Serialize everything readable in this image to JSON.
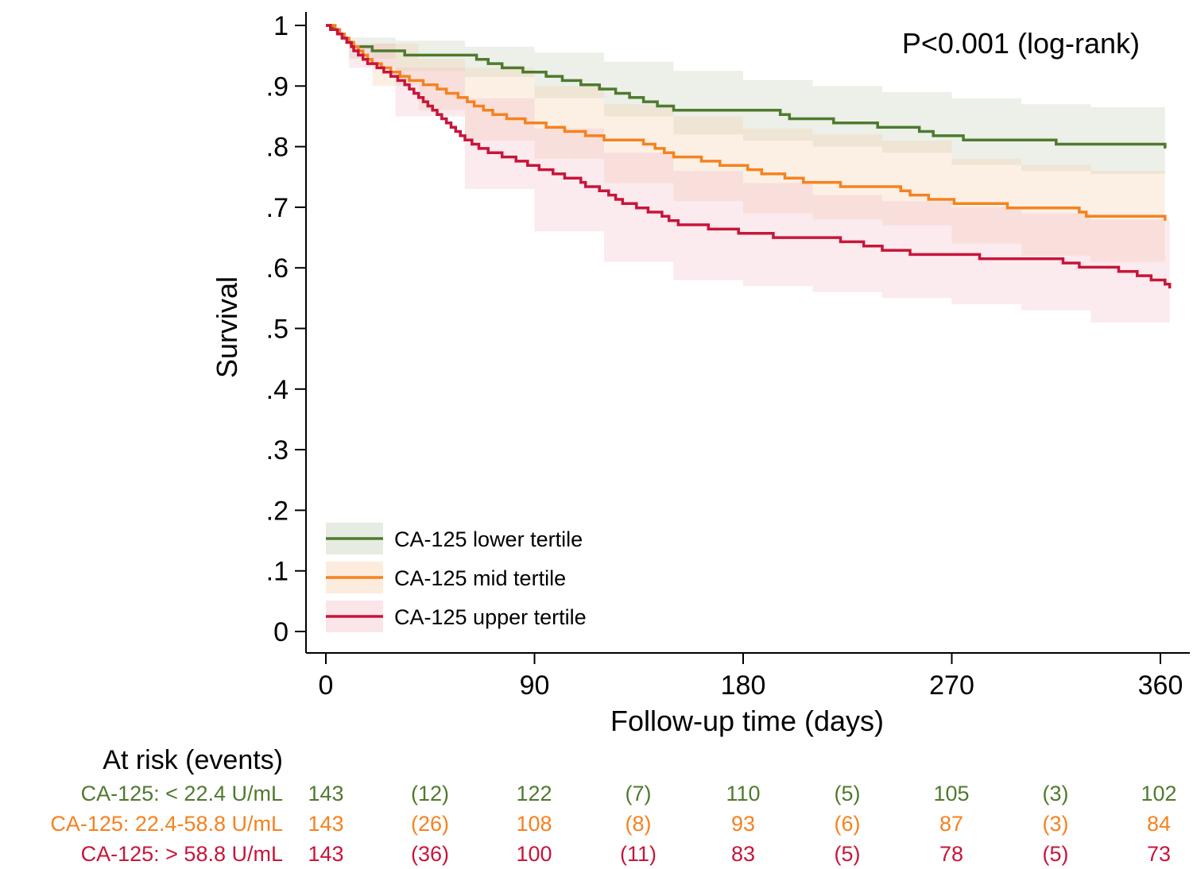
{
  "chart_data": {
    "type": "line",
    "subtype": "kaplan-meier",
    "xlabel": "Follow-up time (days)",
    "ylabel": "Survival",
    "xlim": [
      0,
      364
    ],
    "ylim": [
      0,
      1
    ],
    "x_ticks": [
      0,
      90,
      180,
      270,
      360
    ],
    "x_tick_labels": [
      "0",
      "90",
      "180",
      "270",
      "360"
    ],
    "y_ticks": [
      0,
      0.1,
      0.2,
      0.3,
      0.4,
      0.5,
      0.6,
      0.7,
      0.8,
      0.9,
      1
    ],
    "y_tick_labels": [
      "0",
      ".1",
      ".2",
      ".3",
      ".4",
      ".5",
      ".6",
      ".7",
      ".8",
      ".9",
      "1"
    ],
    "annotation": "P<0.001 (log-rank)",
    "legend_position": "bottom-left",
    "series": [
      {
        "name": "CA-125 lower tertile",
        "color": "#4f7a2e",
        "band_color": "#b9c9ab",
        "points": [
          [
            0,
            1.0
          ],
          [
            3,
            0.993
          ],
          [
            5,
            0.986
          ],
          [
            7,
            0.979
          ],
          [
            9,
            0.972
          ],
          [
            11,
            0.965
          ],
          [
            20,
            0.958
          ],
          [
            34,
            0.951
          ],
          [
            65,
            0.944
          ],
          [
            70,
            0.937
          ],
          [
            76,
            0.93
          ],
          [
            85,
            0.923
          ],
          [
            95,
            0.916
          ],
          [
            102,
            0.909
          ],
          [
            110,
            0.902
          ],
          [
            118,
            0.895
          ],
          [
            125,
            0.888
          ],
          [
            131,
            0.881
          ],
          [
            137,
            0.874
          ],
          [
            143,
            0.867
          ],
          [
            150,
            0.86
          ],
          [
            196,
            0.853
          ],
          [
            200,
            0.846
          ],
          [
            219,
            0.839
          ],
          [
            238,
            0.832
          ],
          [
            256,
            0.825
          ],
          [
            262,
            0.818
          ],
          [
            275,
            0.811
          ],
          [
            315,
            0.804
          ],
          [
            362,
            0.797
          ]
        ],
        "upper": [
          [
            0,
            1.0
          ],
          [
            10,
            0.98
          ],
          [
            30,
            0.975
          ],
          [
            60,
            0.965
          ],
          [
            90,
            0.955
          ],
          [
            120,
            0.94
          ],
          [
            150,
            0.925
          ],
          [
            180,
            0.91
          ],
          [
            210,
            0.9
          ],
          [
            240,
            0.89
          ],
          [
            270,
            0.88
          ],
          [
            300,
            0.87
          ],
          [
            330,
            0.865
          ],
          [
            362,
            0.857
          ]
        ],
        "lower": [
          [
            0,
            1.0
          ],
          [
            10,
            0.945
          ],
          [
            30,
            0.925
          ],
          [
            60,
            0.915
          ],
          [
            90,
            0.88
          ],
          [
            120,
            0.85
          ],
          [
            150,
            0.82
          ],
          [
            180,
            0.81
          ],
          [
            210,
            0.8
          ],
          [
            240,
            0.79
          ],
          [
            270,
            0.77
          ],
          [
            300,
            0.76
          ],
          [
            330,
            0.755
          ],
          [
            362,
            0.73
          ]
        ]
      },
      {
        "name": "CA-125 mid tertile",
        "color": "#f5821f",
        "band_color": "#f5c9a0",
        "points": [
          [
            0,
            1.0
          ],
          [
            4,
            0.993
          ],
          [
            6,
            0.986
          ],
          [
            8,
            0.979
          ],
          [
            10,
            0.972
          ],
          [
            12,
            0.965
          ],
          [
            14,
            0.958
          ],
          [
            16,
            0.951
          ],
          [
            18,
            0.944
          ],
          [
            20,
            0.937
          ],
          [
            24,
            0.93
          ],
          [
            28,
            0.923
          ],
          [
            32,
            0.916
          ],
          [
            36,
            0.909
          ],
          [
            42,
            0.902
          ],
          [
            48,
            0.895
          ],
          [
            52,
            0.888
          ],
          [
            57,
            0.881
          ],
          [
            61,
            0.874
          ],
          [
            64,
            0.867
          ],
          [
            68,
            0.86
          ],
          [
            72,
            0.853
          ],
          [
            78,
            0.846
          ],
          [
            86,
            0.839
          ],
          [
            95,
            0.832
          ],
          [
            103,
            0.825
          ],
          [
            112,
            0.818
          ],
          [
            120,
            0.811
          ],
          [
            137,
            0.804
          ],
          [
            142,
            0.797
          ],
          [
            146,
            0.79
          ],
          [
            150,
            0.783
          ],
          [
            162,
            0.776
          ],
          [
            170,
            0.769
          ],
          [
            182,
            0.762
          ],
          [
            188,
            0.755
          ],
          [
            198,
            0.748
          ],
          [
            206,
            0.741
          ],
          [
            222,
            0.734
          ],
          [
            248,
            0.727
          ],
          [
            252,
            0.72
          ],
          [
            260,
            0.713
          ],
          [
            271,
            0.706
          ],
          [
            294,
            0.699
          ],
          [
            325,
            0.692
          ],
          [
            328,
            0.685
          ],
          [
            362,
            0.678
          ]
        ],
        "upper": [
          [
            0,
            1.0
          ],
          [
            20,
            0.97
          ],
          [
            40,
            0.945
          ],
          [
            60,
            0.93
          ],
          [
            90,
            0.9
          ],
          [
            120,
            0.87
          ],
          [
            150,
            0.85
          ],
          [
            180,
            0.83
          ],
          [
            210,
            0.82
          ],
          [
            240,
            0.81
          ],
          [
            270,
            0.78
          ],
          [
            300,
            0.77
          ],
          [
            330,
            0.76
          ],
          [
            362,
            0.75
          ]
        ],
        "lower": [
          [
            0,
            1.0
          ],
          [
            20,
            0.9
          ],
          [
            40,
            0.86
          ],
          [
            60,
            0.81
          ],
          [
            90,
            0.78
          ],
          [
            120,
            0.74
          ],
          [
            150,
            0.71
          ],
          [
            180,
            0.69
          ],
          [
            210,
            0.68
          ],
          [
            240,
            0.67
          ],
          [
            270,
            0.64
          ],
          [
            300,
            0.62
          ],
          [
            330,
            0.61
          ],
          [
            362,
            0.6
          ]
        ]
      },
      {
        "name": "CA-125 upper tertile",
        "color": "#c8153a",
        "band_color": "#f2b4c1",
        "points": [
          [
            0,
            1.0
          ],
          [
            2,
            0.993
          ],
          [
            5,
            0.986
          ],
          [
            7,
            0.979
          ],
          [
            9,
            0.972
          ],
          [
            11,
            0.965
          ],
          [
            12,
            0.958
          ],
          [
            14,
            0.951
          ],
          [
            16,
            0.944
          ],
          [
            18,
            0.937
          ],
          [
            22,
            0.93
          ],
          [
            25,
            0.923
          ],
          [
            28,
            0.916
          ],
          [
            31,
            0.909
          ],
          [
            34,
            0.902
          ],
          [
            36,
            0.895
          ],
          [
            38,
            0.888
          ],
          [
            40,
            0.881
          ],
          [
            42,
            0.874
          ],
          [
            44,
            0.867
          ],
          [
            46,
            0.86
          ],
          [
            48,
            0.853
          ],
          [
            50,
            0.846
          ],
          [
            52,
            0.839
          ],
          [
            54,
            0.832
          ],
          [
            56,
            0.825
          ],
          [
            58,
            0.818
          ],
          [
            60,
            0.811
          ],
          [
            63,
            0.804
          ],
          [
            66,
            0.797
          ],
          [
            70,
            0.79
          ],
          [
            76,
            0.783
          ],
          [
            82,
            0.776
          ],
          [
            87,
            0.769
          ],
          [
            92,
            0.762
          ],
          [
            98,
            0.755
          ],
          [
            103,
            0.748
          ],
          [
            110,
            0.741
          ],
          [
            112,
            0.734
          ],
          [
            118,
            0.727
          ],
          [
            122,
            0.72
          ],
          [
            125,
            0.713
          ],
          [
            128,
            0.706
          ],
          [
            134,
            0.699
          ],
          [
            139,
            0.692
          ],
          [
            145,
            0.685
          ],
          [
            148,
            0.678
          ],
          [
            152,
            0.671
          ],
          [
            165,
            0.664
          ],
          [
            178,
            0.657
          ],
          [
            193,
            0.65
          ],
          [
            222,
            0.643
          ],
          [
            232,
            0.636
          ],
          [
            240,
            0.629
          ],
          [
            252,
            0.622
          ],
          [
            282,
            0.615
          ],
          [
            318,
            0.608
          ],
          [
            325,
            0.601
          ],
          [
            342,
            0.594
          ],
          [
            350,
            0.587
          ],
          [
            356,
            0.58
          ],
          [
            362,
            0.573
          ],
          [
            364,
            0.566
          ]
        ],
        "upper": [
          [
            0,
            1.0
          ],
          [
            10,
            0.97
          ],
          [
            30,
            0.93
          ],
          [
            60,
            0.88
          ],
          [
            90,
            0.83
          ],
          [
            120,
            0.79
          ],
          [
            150,
            0.76
          ],
          [
            180,
            0.74
          ],
          [
            210,
            0.72
          ],
          [
            240,
            0.71
          ],
          [
            270,
            0.7
          ],
          [
            300,
            0.69
          ],
          [
            330,
            0.68
          ],
          [
            364,
            0.65
          ]
        ],
        "lower": [
          [
            0,
            1.0
          ],
          [
            10,
            0.93
          ],
          [
            30,
            0.85
          ],
          [
            60,
            0.73
          ],
          [
            90,
            0.66
          ],
          [
            120,
            0.61
          ],
          [
            150,
            0.58
          ],
          [
            180,
            0.57
          ],
          [
            210,
            0.56
          ],
          [
            240,
            0.55
          ],
          [
            270,
            0.54
          ],
          [
            300,
            0.53
          ],
          [
            330,
            0.51
          ],
          [
            364,
            0.48
          ]
        ]
      }
    ],
    "risk_table": {
      "title": "At risk (events)",
      "rows": [
        {
          "label": "CA-125: < 22.4 U/mL",
          "color": "#4f7a2e",
          "cells": [
            "143",
            "(12)",
            "122",
            "(7)",
            "110",
            "(5)",
            "105",
            "(3)",
            "102"
          ]
        },
        {
          "label": "CA-125: 22.4-58.8 U/mL",
          "color": "#f5821f",
          "cells": [
            "143",
            "(26)",
            "108",
            "(8)",
            "93",
            "(6)",
            "87",
            "(3)",
            "84"
          ]
        },
        {
          "label": "CA-125: > 58.8 U/mL",
          "color": "#c8153a",
          "cells": [
            "143",
            "(36)",
            "100",
            "(11)",
            "83",
            "(5)",
            "78",
            "(5)",
            "73"
          ]
        }
      ]
    }
  }
}
